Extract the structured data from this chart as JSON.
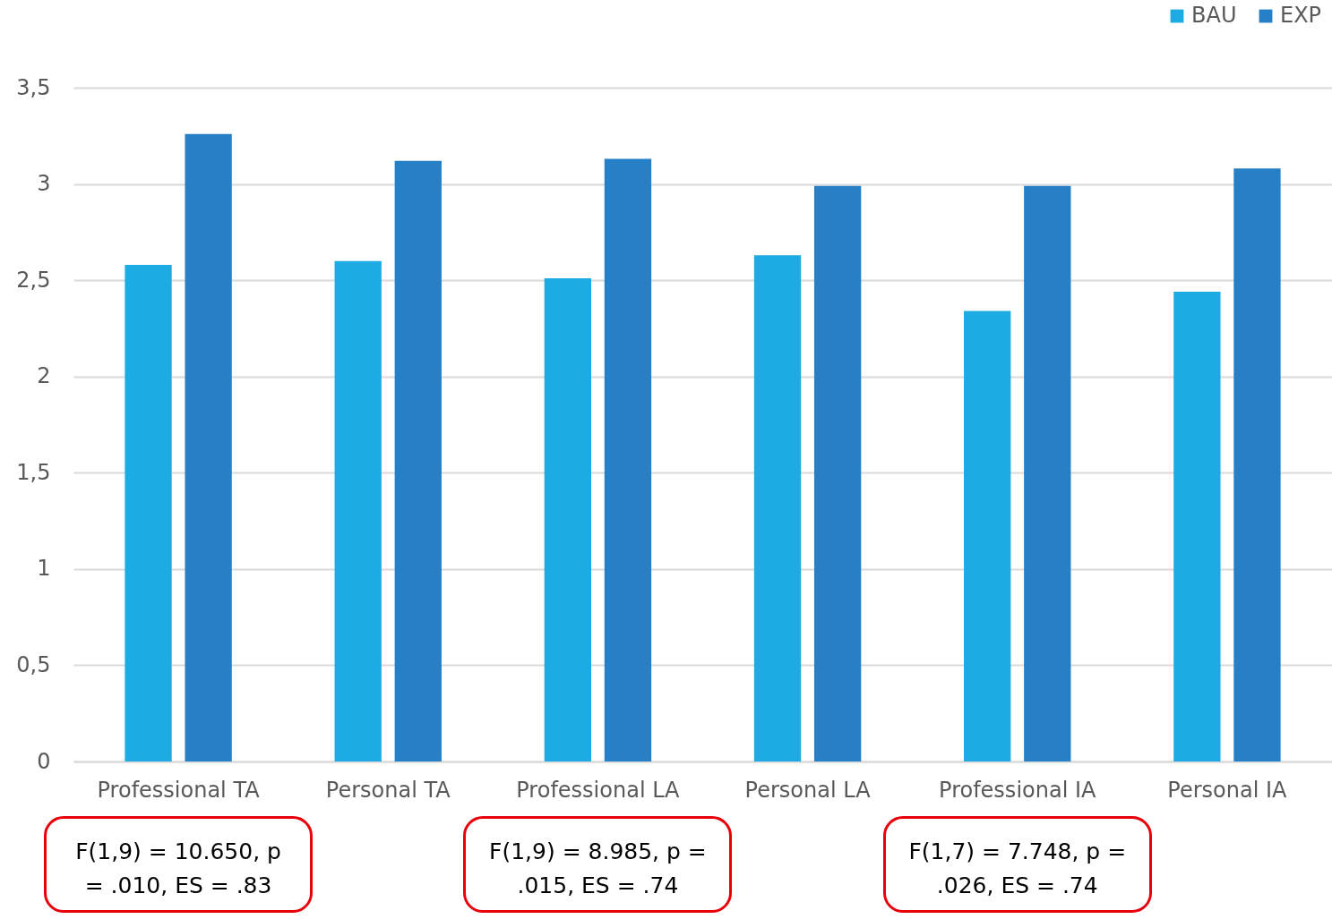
{
  "chart_data": {
    "type": "bar",
    "categories": [
      "Professional TA",
      "Personal TA",
      "Professional LA",
      "Personal LA",
      "Professional IA",
      "Personal IA"
    ],
    "series": [
      {
        "name": "BAU",
        "color": "#1eabe3",
        "values": [
          2.58,
          2.6,
          2.51,
          2.63,
          2.34,
          2.44
        ]
      },
      {
        "name": "EXP",
        "color": "#2780c6",
        "values": [
          3.26,
          3.12,
          3.13,
          2.99,
          2.99,
          3.08
        ]
      }
    ],
    "ylim": [
      0,
      3.5
    ],
    "yticks": [
      0,
      {
        "value": 0.5,
        "label": "0,5"
      },
      1,
      {
        "value": 1.5,
        "label": "1,5"
      },
      2,
      {
        "value": 2.5,
        "label": "2,5"
      },
      3,
      {
        "value": 3.5,
        "label": "3,5"
      }
    ],
    "grid": "y",
    "legend": "top right",
    "annotations": [
      "F(1,9) = 10.650, p = .010, ES = .83",
      "F(1,9) = 8.985, p = .015, ES = .74",
      "F(1,7) = 7.748, p = .026, ES = .74"
    ]
  }
}
